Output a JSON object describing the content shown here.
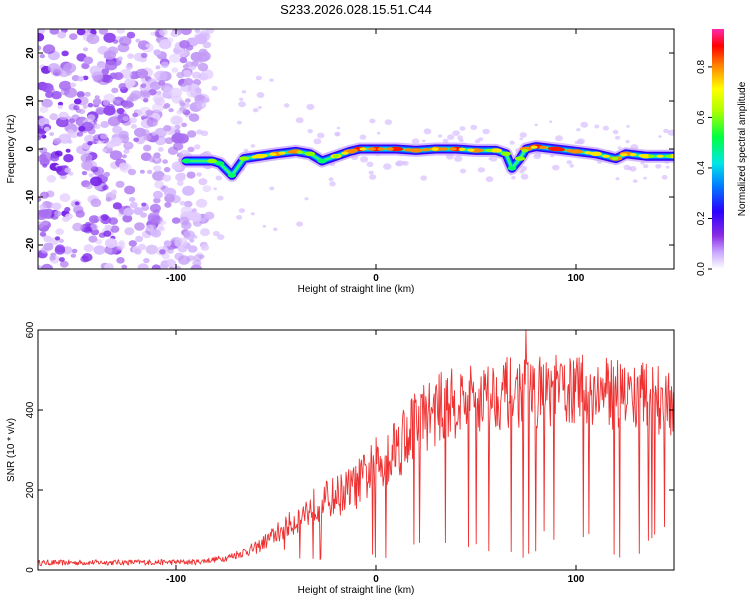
{
  "title": "S233.2026.028.15.51.C44",
  "colors": {
    "snr_line": "#ee3030",
    "ridge_low": "#3300ff",
    "noise": "#a35cf0"
  },
  "chart_data": [
    {
      "type": "heatmap",
      "name": "spectrogram",
      "xlabel": "Height of straight line (km)",
      "ylabel": "Frequency (Hz)",
      "xlim": [
        -169,
        149
      ],
      "ylim": [
        -25,
        25
      ],
      "x_ticks": [
        -100,
        0,
        100
      ],
      "y_ticks": [
        -20,
        -10,
        0,
        10,
        20
      ],
      "noise_region_x": [
        -169,
        -83
      ],
      "ridge": {
        "x": [
          -95,
          -82,
          -78,
          -72,
          -66,
          -58,
          -50,
          -40,
          -33,
          -27,
          -20,
          -13,
          -8,
          0,
          10,
          20,
          30,
          40,
          50,
          60,
          65,
          68,
          72,
          75,
          80,
          90,
          100,
          110,
          120,
          125,
          135,
          149
        ],
        "freq": [
          -2.5,
          -2.5,
          -3.0,
          -5.5,
          -2.0,
          -1.5,
          -1.0,
          -0.5,
          -1.0,
          -2.5,
          -1.5,
          -0.5,
          0.0,
          0.0,
          0.0,
          -0.3,
          0.0,
          0.0,
          -0.3,
          -0.3,
          -1.0,
          -4.0,
          -2.0,
          0.0,
          0.5,
          0.0,
          -0.5,
          -1.0,
          -2.0,
          -1.0,
          -1.5,
          -1.5
        ],
        "amplitude": [
          0.35,
          0.5,
          0.35,
          0.3,
          0.5,
          0.75,
          0.85,
          0.8,
          0.6,
          0.45,
          0.65,
          0.8,
          0.9,
          0.9,
          0.95,
          0.85,
          0.8,
          0.9,
          0.85,
          0.75,
          0.5,
          0.35,
          0.55,
          0.8,
          0.9,
          0.95,
          0.85,
          0.75,
          0.8,
          0.85,
          0.7,
          0.65
        ]
      },
      "colorbar": {
        "label": "Normalized spectral amplitude",
        "range": [
          0,
          0.95
        ],
        "ticks": [
          "0.0",
          "0.2",
          "0.4",
          "0.6",
          "0.8"
        ],
        "tick_values": [
          0.0,
          0.2,
          0.4,
          0.6,
          0.8
        ]
      }
    },
    {
      "type": "line",
      "name": "snr",
      "xlabel": "Height of straight line (km)",
      "ylabel": "SNR (10 * v/v)",
      "xlim": [
        -169,
        149
      ],
      "ylim": [
        0,
        600
      ],
      "x_ticks": [
        -100,
        0,
        100
      ],
      "y_ticks": [
        0,
        200,
        400,
        600
      ],
      "trend": {
        "x": [
          -169,
          -90,
          -75,
          -60,
          -50,
          -40,
          -30,
          -20,
          -10,
          0,
          10,
          20,
          30,
          40,
          60,
          80,
          100,
          120,
          149
        ],
        "snr": [
          18,
          20,
          30,
          55,
          90,
          125,
          165,
          185,
          210,
          260,
          310,
          370,
          400,
          420,
          440,
          445,
          450,
          440,
          425
        ]
      },
      "peak": {
        "x": 75,
        "snr": 600
      }
    }
  ]
}
